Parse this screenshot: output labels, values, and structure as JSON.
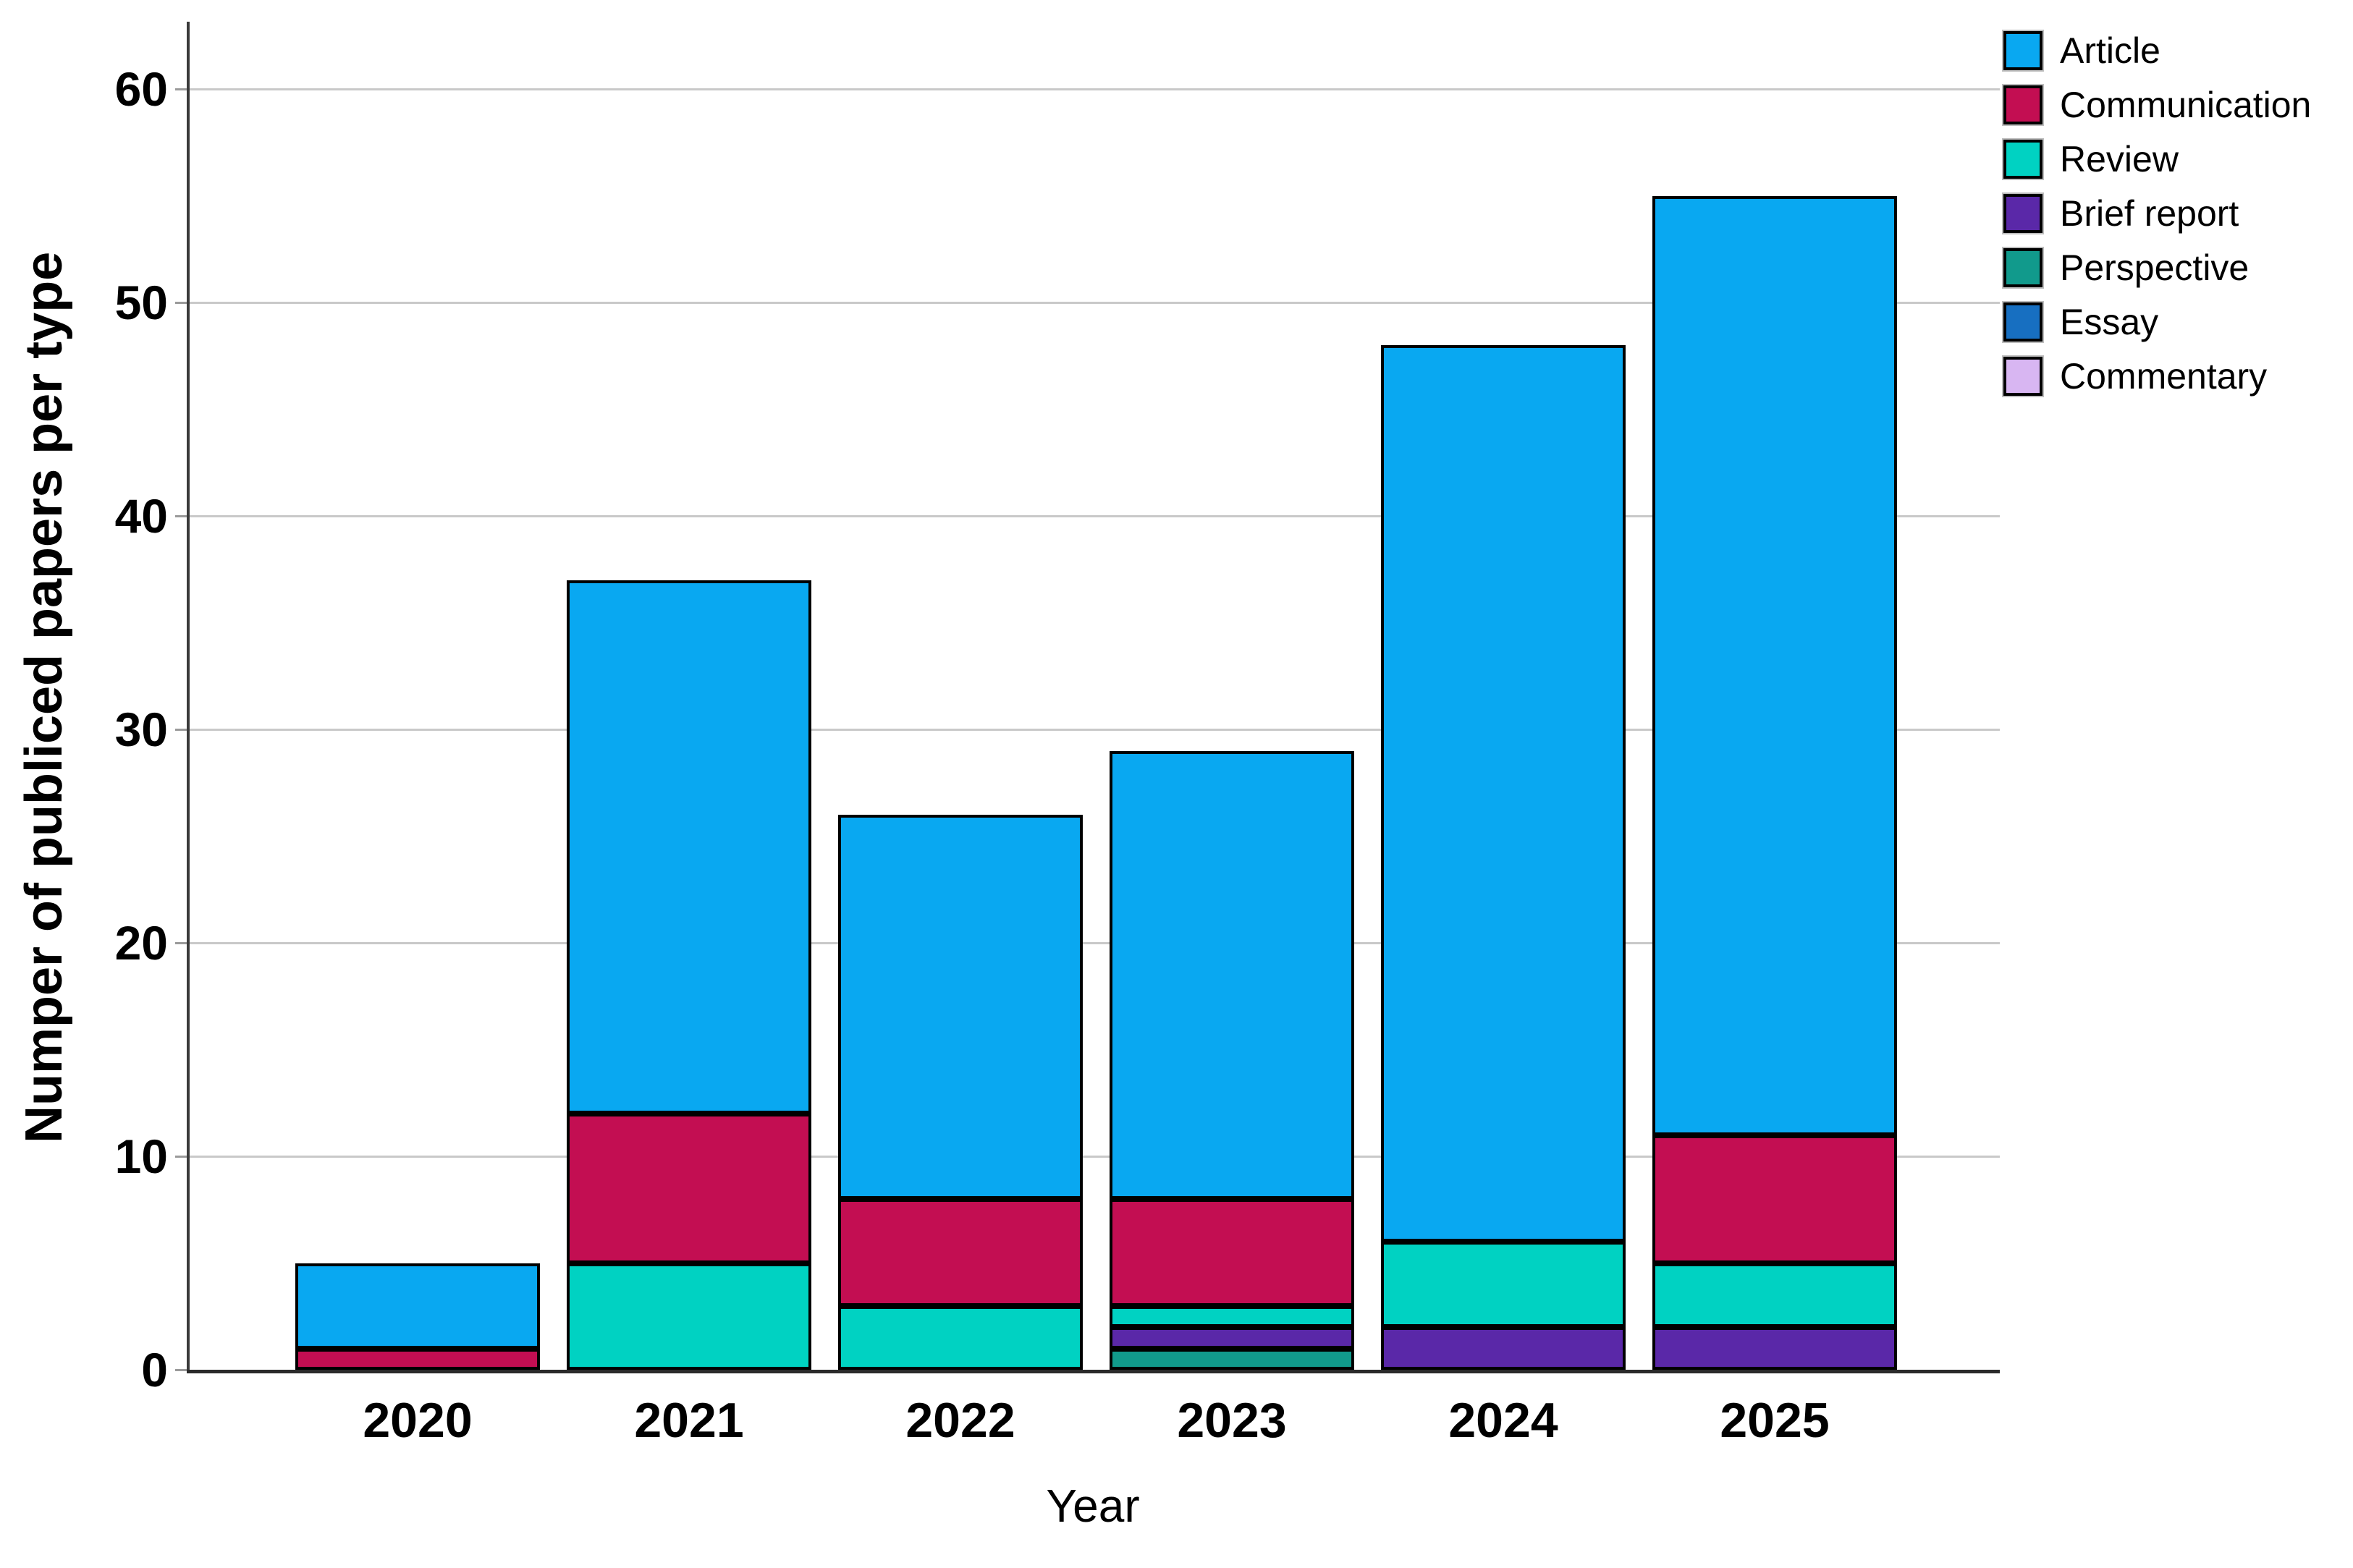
{
  "chart_data": {
    "type": "bar",
    "stacked": true,
    "title": "",
    "xlabel": "Year",
    "ylabel": "Numper of publiced papers per type",
    "categories": [
      "2020",
      "2021",
      "2022",
      "2023",
      "2024",
      "2025"
    ],
    "series": [
      {
        "name": "Article",
        "color": "#09a8f1",
        "values": [
          4,
          25,
          18,
          21,
          42,
          44
        ]
      },
      {
        "name": "Communication",
        "color": "#c30e52",
        "values": [
          1,
          7,
          5,
          5,
          0,
          6
        ]
      },
      {
        "name": "Review",
        "color": "#00d2c2",
        "values": [
          0,
          5,
          3,
          1,
          4,
          3
        ]
      },
      {
        "name": "Brief report",
        "color": "#5a28a8",
        "values": [
          0,
          0,
          0,
          1,
          2,
          2
        ]
      },
      {
        "name": "Perspective",
        "color": "#119a8c",
        "values": [
          0,
          0,
          0,
          1,
          0,
          0
        ]
      },
      {
        "name": "Essay",
        "color": "#176fc1",
        "values": [
          0,
          0,
          0,
          0,
          0,
          0
        ]
      },
      {
        "name": "Commentary",
        "color": "#d8b6f2",
        "values": [
          0,
          0,
          0,
          0,
          0,
          0
        ]
      }
    ],
    "stack_order_bottom_up": [
      "Commentary",
      "Essay",
      "Perspective",
      "Brief report",
      "Review",
      "Communication",
      "Article"
    ],
    "totals": [
      5,
      37,
      26,
      29,
      48,
      55
    ],
    "yticks": [
      0,
      10,
      20,
      30,
      40,
      50,
      60
    ],
    "ylim": [
      0,
      63
    ],
    "grid": true,
    "gridline_color": "#c9c9c9",
    "axis_color": "#3a3a3a",
    "bar_border_color": "#000000",
    "legend_position": "top-right",
    "legend_entries": [
      "Article",
      "Communication",
      "Review",
      "Brief report",
      "Perspective",
      "Essay",
      "Commentary"
    ]
  }
}
